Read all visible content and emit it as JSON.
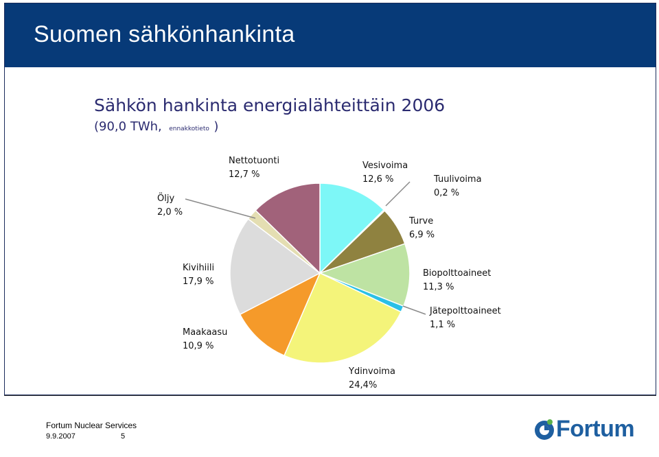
{
  "slide": {
    "title": "Suomen sähkönhankinta",
    "header_color": "#073A78"
  },
  "footer": {
    "company": "Fortum Nuclear Services",
    "date": "9.9.2007",
    "page": "5"
  },
  "logo": {
    "text": "Fortum",
    "icon": "fortum-logo-icon"
  },
  "chart_data": {
    "type": "pie",
    "title": "Sähkön hankinta energialähteittäin 2006",
    "subtitle": "(90,0 TWh,",
    "subtitle_note": "ennakkotieto",
    "subtitle_close": ")",
    "slices": [
      {
        "name": "Vesivoima",
        "value": 12.6,
        "label": "12,6 %",
        "color": "#7DF7F7"
      },
      {
        "name": "Tuulivoima",
        "value": 0.2,
        "label": "0,2 %",
        "color": "#3D3D3D"
      },
      {
        "name": "Turve",
        "value": 6.9,
        "label": "6,9 %",
        "color": "#8F8240"
      },
      {
        "name": "Biopolttoaineet",
        "value": 11.3,
        "label": "11,3 %",
        "color": "#BEE3A3"
      },
      {
        "name": "Jätepolttoaineet",
        "value": 1.1,
        "label": "1,1 %",
        "color": "#2BC0E6"
      },
      {
        "name": "Ydinvoima",
        "value": 24.4,
        "label": "24,4%",
        "color": "#F4F47A"
      },
      {
        "name": "Maakaasu",
        "value": 10.9,
        "label": "10,9 %",
        "color": "#F59A2A"
      },
      {
        "name": "Kivihiili",
        "value": 17.9,
        "label": "17,9 %",
        "color": "#DCDCDC"
      },
      {
        "name": "Öljy",
        "value": 2.0,
        "label": "2,0 %",
        "color": "#E4DEB2"
      },
      {
        "name": "Nettotuonti",
        "value": 12.7,
        "label": "12,7 %",
        "color": "#A1627A"
      }
    ]
  }
}
